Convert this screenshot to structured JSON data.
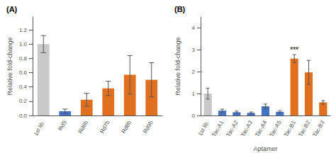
{
  "chart_data": [
    {
      "type": "bar",
      "title": "(A)",
      "categories": [
        "1st lib.",
        "Rd5",
        "Rd6b",
        "Rd7b",
        "Rd8b",
        "Rd9b"
      ],
      "values": [
        1.0,
        0.06,
        0.22,
        0.38,
        0.57,
        0.5
      ],
      "errors": [
        0.12,
        0.03,
        0.09,
        0.1,
        0.27,
        0.24
      ],
      "colors": [
        "#c8c8c8",
        "#4472c4",
        "#e07020",
        "#e07020",
        "#e07020",
        "#e07020"
      ],
      "ylabel": "Relative fold-change",
      "ylim": [
        0,
        1.38
      ],
      "yticks": [
        {
          "value": 0,
          "label": "0.0"
        },
        0.2,
        0.4,
        0.6,
        0.8,
        {
          "value": 1.0,
          "label": "1.0"
        },
        1.2
      ],
      "grid": false
    },
    {
      "type": "bar",
      "title": "(B)",
      "categories": [
        "1st lib.",
        "Tac-A1",
        "Tac-A2",
        "Tac-A3",
        "Tac-A4",
        "Tac-A5",
        "Tac-B1",
        "Tac-B2",
        "Tac-B3"
      ],
      "values": [
        1.0,
        0.22,
        0.15,
        0.12,
        0.42,
        0.17,
        2.6,
        1.97,
        0.6
      ],
      "errors": [
        0.25,
        0.07,
        0.05,
        0.04,
        0.1,
        0.05,
        0.18,
        0.55,
        0.08
      ],
      "colors": [
        "#c8c8c8",
        "#4472c4",
        "#4472c4",
        "#4472c4",
        "#4472c4",
        "#4472c4",
        "#e07020",
        "#e07020",
        "#e07020"
      ],
      "ylabel": "Relative fold-change",
      "xlabel": "Aptamer",
      "ylim": [
        0,
        4.5
      ],
      "yticks": [
        0,
        1,
        2,
        3,
        4
      ],
      "annotations": [
        {
          "text": "***",
          "x": "Tac-B1"
        }
      ],
      "grid": false
    }
  ]
}
